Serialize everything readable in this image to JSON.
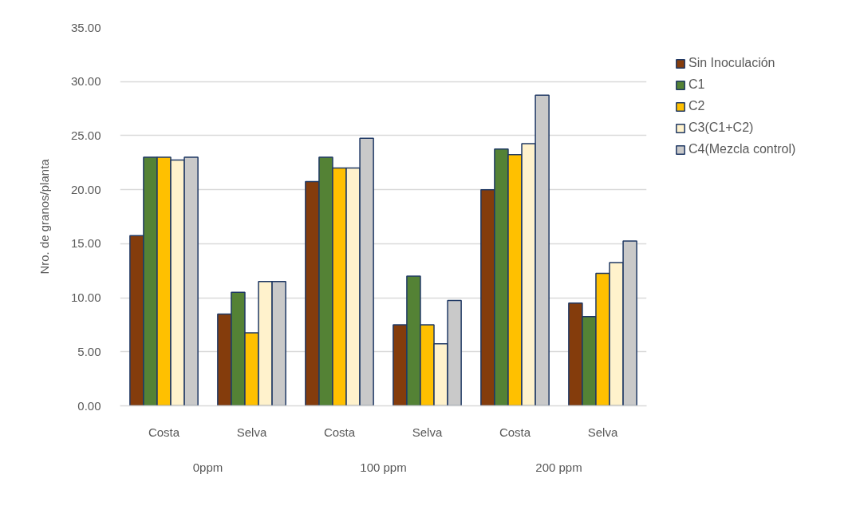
{
  "chart_data": {
    "type": "bar",
    "ylabel": "Nro. de granos/planta",
    "categories": [
      "Costa",
      "Selva",
      "Costa",
      "Selva",
      "Costa",
      "Selva"
    ],
    "annotations": [
      "0ppm",
      "100 ppm",
      "200 ppm"
    ],
    "series": [
      {
        "name": "Sin Inoculación",
        "color": "#843c0c",
        "values": [
          15.75,
          8.5,
          20.75,
          7.5,
          20.0,
          9.5
        ]
      },
      {
        "name": "C1",
        "color": "#548235",
        "values": [
          23.0,
          10.5,
          23.0,
          12.0,
          23.75,
          8.25
        ]
      },
      {
        "name": "C2",
        "color": "#ffc000",
        "values": [
          23.0,
          6.75,
          22.0,
          7.5,
          23.25,
          12.25
        ]
      },
      {
        "name": "C3(C1+C2)",
        "color": "#fff2cc",
        "values": [
          22.75,
          11.5,
          22.0,
          5.75,
          24.25,
          13.25
        ]
      },
      {
        "name": "C4(Mezcla control)",
        "color": "#c9c9c9",
        "values": [
          23.0,
          11.5,
          24.75,
          9.75,
          28.75,
          15.25
        ]
      }
    ],
    "ylim": [
      0,
      35
    ],
    "yticks": [
      {
        "value": 0,
        "label": "0.00"
      },
      {
        "value": 5,
        "label": "5.00"
      },
      {
        "value": 10,
        "label": "10.00"
      },
      {
        "value": 15,
        "label": "15.00"
      },
      {
        "value": 20,
        "label": "20.00"
      },
      {
        "value": 25,
        "label": "25.00"
      },
      {
        "value": 30,
        "label": "30.00"
      },
      {
        "value": 35,
        "label": "35.00"
      }
    ],
    "grid": "y",
    "legend": "right"
  }
}
